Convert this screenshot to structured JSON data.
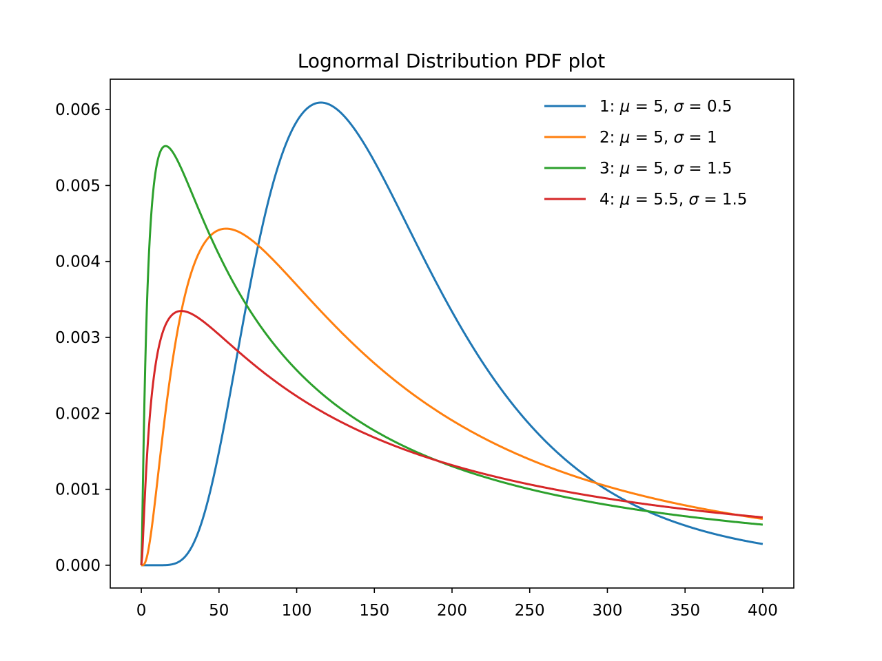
{
  "chart_data": {
    "type": "line",
    "title": "Lognormal Distribution PDF plot",
    "xlabel": "",
    "ylabel": "",
    "xlim": [
      -20,
      420
    ],
    "ylim": [
      -0.0003,
      0.0064
    ],
    "xticks": [
      0,
      50,
      100,
      150,
      200,
      250,
      300,
      350,
      400
    ],
    "xtick_labels": [
      "0",
      "50",
      "100",
      "150",
      "200",
      "250",
      "300",
      "350",
      "400"
    ],
    "yticks": [
      0.0,
      0.001,
      0.002,
      0.003,
      0.004,
      0.005,
      0.006
    ],
    "ytick_labels": [
      "0.000",
      "0.001",
      "0.002",
      "0.003",
      "0.004",
      "0.005",
      "0.006"
    ],
    "x_range": [
      0,
      400
    ],
    "grid": false,
    "legend_position": "top-right",
    "series": [
      {
        "name": "1: μ = 5, σ = 0.5",
        "legend": {
          "index": "1",
          "mu": "5",
          "sigma": "0.5"
        },
        "mu": 5,
        "sigma": 0.5,
        "color": "#1f77b4"
      },
      {
        "name": "2: μ = 5, σ = 1",
        "legend": {
          "index": "2",
          "mu": "5",
          "sigma": "1"
        },
        "mu": 5,
        "sigma": 1.0,
        "color": "#ff7f0e"
      },
      {
        "name": "3: μ = 5, σ = 1.5",
        "legend": {
          "index": "3",
          "mu": "5",
          "sigma": "1.5"
        },
        "mu": 5,
        "sigma": 1.5,
        "color": "#2ca02c"
      },
      {
        "name": "4: μ = 5.5, σ = 1.5",
        "legend": {
          "index": "4",
          "mu": "5.5",
          "sigma": "1.5"
        },
        "mu": 5.5,
        "sigma": 1.5,
        "color": "#d62728"
      }
    ]
  }
}
